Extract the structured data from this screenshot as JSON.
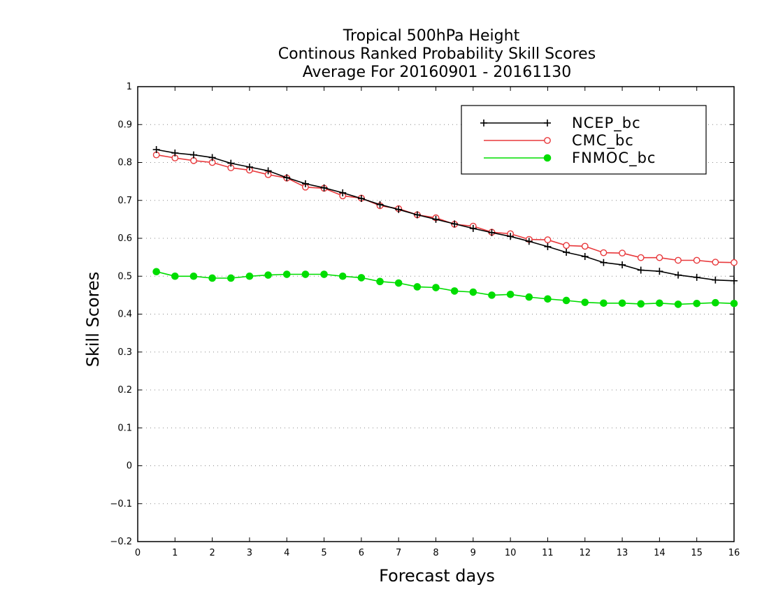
{
  "chart_data": {
    "type": "line",
    "title": [
      "Tropical 500hPa Height",
      "Continous Ranked Probability Skill Scores",
      "Average For 20160901 - 20161130"
    ],
    "xlabel": "Forecast days",
    "ylabel": "Skill Scores",
    "xlim": [
      0,
      16
    ],
    "ylim": [
      -0.2,
      1
    ],
    "xticks": [
      "0",
      "1",
      "2",
      "3",
      "4",
      "5",
      "6",
      "7",
      "8",
      "9",
      "10",
      "11",
      "12",
      "13",
      "14",
      "15",
      "16"
    ],
    "yticks": [
      "1",
      "0.9",
      "0.8",
      "0.7",
      "0.6",
      "0.5",
      "0.4",
      "0.3",
      "0.2",
      "0.1",
      "0",
      "-0.1",
      "-0.2"
    ],
    "grid": true,
    "legend_position": "top-right",
    "x": [
      0.5,
      1,
      1.5,
      2,
      2.5,
      3,
      3.5,
      4,
      4.5,
      5,
      5.5,
      6,
      6.5,
      7,
      7.5,
      8,
      8.5,
      9,
      9.5,
      10,
      10.5,
      11,
      11.5,
      12,
      12.5,
      13,
      13.5,
      14,
      14.5,
      15,
      15.5,
      16
    ],
    "series": [
      {
        "name": "NCEP_bc",
        "color": "#000000",
        "marker": "plus",
        "values": [
          0.834,
          0.825,
          0.82,
          0.813,
          0.798,
          0.788,
          0.778,
          0.76,
          0.744,
          0.733,
          0.72,
          0.705,
          0.689,
          0.676,
          0.662,
          0.65,
          0.638,
          0.626,
          0.615,
          0.605,
          0.592,
          0.578,
          0.563,
          0.552,
          0.536,
          0.53,
          0.516,
          0.513,
          0.503,
          0.497,
          0.49,
          0.488
        ]
      },
      {
        "name": "CMC_bc",
        "color": "#e8383b",
        "marker": "open-circle",
        "values": [
          0.82,
          0.812,
          0.805,
          0.8,
          0.786,
          0.78,
          0.768,
          0.759,
          0.735,
          0.732,
          0.712,
          0.706,
          0.686,
          0.678,
          0.662,
          0.654,
          0.637,
          0.632,
          0.616,
          0.612,
          0.597,
          0.596,
          0.581,
          0.579,
          0.562,
          0.561,
          0.549,
          0.549,
          0.542,
          0.542,
          0.537,
          0.536
        ]
      },
      {
        "name": "FNMOC_bc",
        "color": "#00dd00",
        "marker": "filled-circle",
        "values": [
          0.512,
          0.5,
          0.5,
          0.495,
          0.495,
          0.5,
          0.503,
          0.505,
          0.505,
          0.505,
          0.5,
          0.496,
          0.486,
          0.482,
          0.472,
          0.47,
          0.461,
          0.458,
          0.45,
          0.452,
          0.445,
          0.44,
          0.436,
          0.431,
          0.429,
          0.429,
          0.427,
          0.429,
          0.426,
          0.428,
          0.43,
          0.428
        ]
      }
    ]
  }
}
